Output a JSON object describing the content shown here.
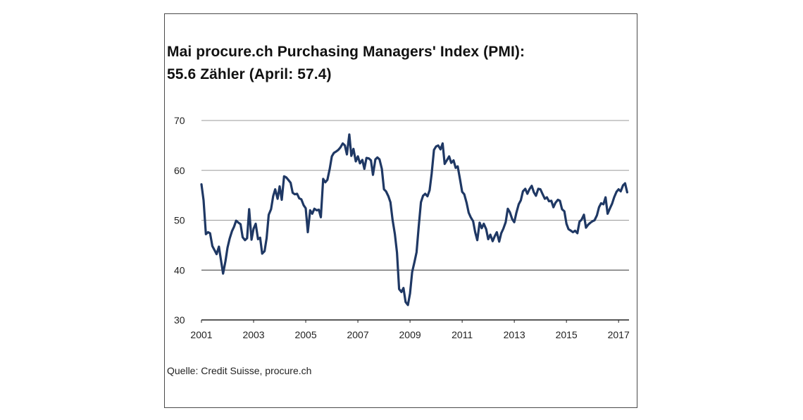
{
  "chart_data": {
    "type": "line",
    "title": "Mai procure.ch Purchasing Managers' Index (PMI):",
    "subtitle": "55.6 Zähler (April: 57.4)",
    "xlabel": "",
    "ylabel": "",
    "xlim": [
      2001.0,
      2017.4
    ],
    "ylim": [
      30,
      70
    ],
    "yticks": [
      "30",
      "40",
      "50",
      "60",
      "70"
    ],
    "xticks": [
      "2001",
      "2003",
      "2005",
      "2007",
      "2009",
      "2011",
      "2013",
      "2015",
      "2017"
    ],
    "grid": "horizontal",
    "line_color": "#1f3864",
    "series": [
      {
        "x": [
          2001.0,
          2001.08,
          2001.17,
          2001.25,
          2001.33,
          2001.42,
          2001.5,
          2001.58,
          2001.67,
          2001.75,
          2001.83,
          2001.92,
          2002.0,
          2002.08,
          2002.17,
          2002.25,
          2002.33,
          2002.42,
          2002.5,
          2002.58,
          2002.67,
          2002.75,
          2002.83,
          2002.92,
          2003.0,
          2003.08,
          2003.17,
          2003.25,
          2003.33,
          2003.42,
          2003.5,
          2003.58,
          2003.67,
          2003.75,
          2003.83,
          2003.92,
          2004.0,
          2004.08,
          2004.17,
          2004.25,
          2004.33,
          2004.42,
          2004.5,
          2004.58,
          2004.67,
          2004.75,
          2004.83,
          2004.92,
          2005.0,
          2005.08,
          2005.17,
          2005.25,
          2005.33,
          2005.42,
          2005.5,
          2005.58,
          2005.67,
          2005.75,
          2005.83,
          2005.92,
          2006.0,
          2006.08,
          2006.17,
          2006.25,
          2006.33,
          2006.42,
          2006.5,
          2006.58,
          2006.67,
          2006.75,
          2006.83,
          2006.92,
          2007.0,
          2007.08,
          2007.17,
          2007.25,
          2007.33,
          2007.42,
          2007.5,
          2007.58,
          2007.67,
          2007.75,
          2007.83,
          2007.92,
          2008.0,
          2008.08,
          2008.17,
          2008.25,
          2008.33,
          2008.42,
          2008.5,
          2008.58,
          2008.67,
          2008.75,
          2008.83,
          2008.92,
          2009.0,
          2009.08,
          2009.17,
          2009.25,
          2009.33,
          2009.42,
          2009.5,
          2009.58,
          2009.67,
          2009.75,
          2009.83,
          2009.92,
          2010.0,
          2010.08,
          2010.17,
          2010.25,
          2010.33,
          2010.42,
          2010.5,
          2010.58,
          2010.67,
          2010.75,
          2010.83,
          2010.92,
          2011.0,
          2011.08,
          2011.17,
          2011.25,
          2011.33,
          2011.42,
          2011.5,
          2011.58,
          2011.67,
          2011.75,
          2011.83,
          2011.92,
          2012.0,
          2012.08,
          2012.17,
          2012.25,
          2012.33,
          2012.42,
          2012.5,
          2012.58,
          2012.67,
          2012.75,
          2012.83,
          2012.92,
          2013.0,
          2013.08,
          2013.17,
          2013.25,
          2013.33,
          2013.42,
          2013.5,
          2013.58,
          2013.67,
          2013.75,
          2013.83,
          2013.92,
          2014.0,
          2014.08,
          2014.17,
          2014.25,
          2014.33,
          2014.42,
          2014.5,
          2014.58,
          2014.67,
          2014.75,
          2014.83,
          2014.92,
          2015.0,
          2015.08,
          2015.17,
          2015.25,
          2015.33,
          2015.42,
          2015.5,
          2015.58,
          2015.67,
          2015.75,
          2015.83,
          2015.92,
          2016.0,
          2016.08,
          2016.17,
          2016.25,
          2016.33,
          2016.42,
          2016.5,
          2016.58,
          2016.67,
          2016.75,
          2016.83,
          2016.92,
          2017.0,
          2017.08,
          2017.17,
          2017.25,
          2017.33
        ],
        "y": [
          57.2,
          54.0,
          47.2,
          47.6,
          47.4,
          44.8,
          44.0,
          43.2,
          44.7,
          41.9,
          39.3,
          41.8,
          44.5,
          46.3,
          47.8,
          48.7,
          49.9,
          49.5,
          49.2,
          46.6,
          46.0,
          46.4,
          52.2,
          46.1,
          48.3,
          49.3,
          46.2,
          46.5,
          43.3,
          43.8,
          46.4,
          51.1,
          52.2,
          54.8,
          56.2,
          54.3,
          56.8,
          54.1,
          58.8,
          58.6,
          58.1,
          57.5,
          55.5,
          55.2,
          55.3,
          54.4,
          54.2,
          53.0,
          52.4,
          47.6,
          52.0,
          51.3,
          52.3,
          52.0,
          52.1,
          50.6,
          58.3,
          57.6,
          58.1,
          60.3,
          62.8,
          63.5,
          63.8,
          64.1,
          64.6,
          65.4,
          65.0,
          63.2,
          67.2,
          62.9,
          64.3,
          61.8,
          62.8,
          61.4,
          62.1,
          60.3,
          62.5,
          62.4,
          62.0,
          59.1,
          62.2,
          62.6,
          62.2,
          60.3,
          56.2,
          55.8,
          54.8,
          53.6,
          50.1,
          47.2,
          43.5,
          36.2,
          35.6,
          36.4,
          33.6,
          33.0,
          35.3,
          39.6,
          41.6,
          43.6,
          48.5,
          53.6,
          54.9,
          55.3,
          54.8,
          56.0,
          59.3,
          64.1,
          64.8,
          65.0,
          64.2,
          65.4,
          61.3,
          62.1,
          62.8,
          61.5,
          62.0,
          60.5,
          60.8,
          58.1,
          55.7,
          55.2,
          53.5,
          51.5,
          50.6,
          49.8,
          47.6,
          46.0,
          49.5,
          48.4,
          49.3,
          48.2,
          46.2,
          47.1,
          45.8,
          46.8,
          47.6,
          45.7,
          47.4,
          48.3,
          49.6,
          52.3,
          51.6,
          50.2,
          49.6,
          51.5,
          53.2,
          54.0,
          55.8,
          56.3,
          55.3,
          56.2,
          56.9,
          55.6,
          54.9,
          56.3,
          56.2,
          55.3,
          54.3,
          54.6,
          53.8,
          53.9,
          52.6,
          53.5,
          54.1,
          53.9,
          52.2,
          51.8,
          49.3,
          48.2,
          47.9,
          47.6,
          47.9,
          47.4,
          49.7,
          50.1,
          51.1,
          48.5,
          49.1,
          49.5,
          49.8,
          50.0,
          51.0,
          52.6,
          53.4,
          53.2,
          54.6,
          51.3,
          52.4,
          53.3,
          54.6,
          55.7,
          56.2,
          55.8,
          57.0,
          57.4,
          55.6
        ]
      }
    ]
  },
  "source": "Quelle: Credit Suisse, procure.ch"
}
